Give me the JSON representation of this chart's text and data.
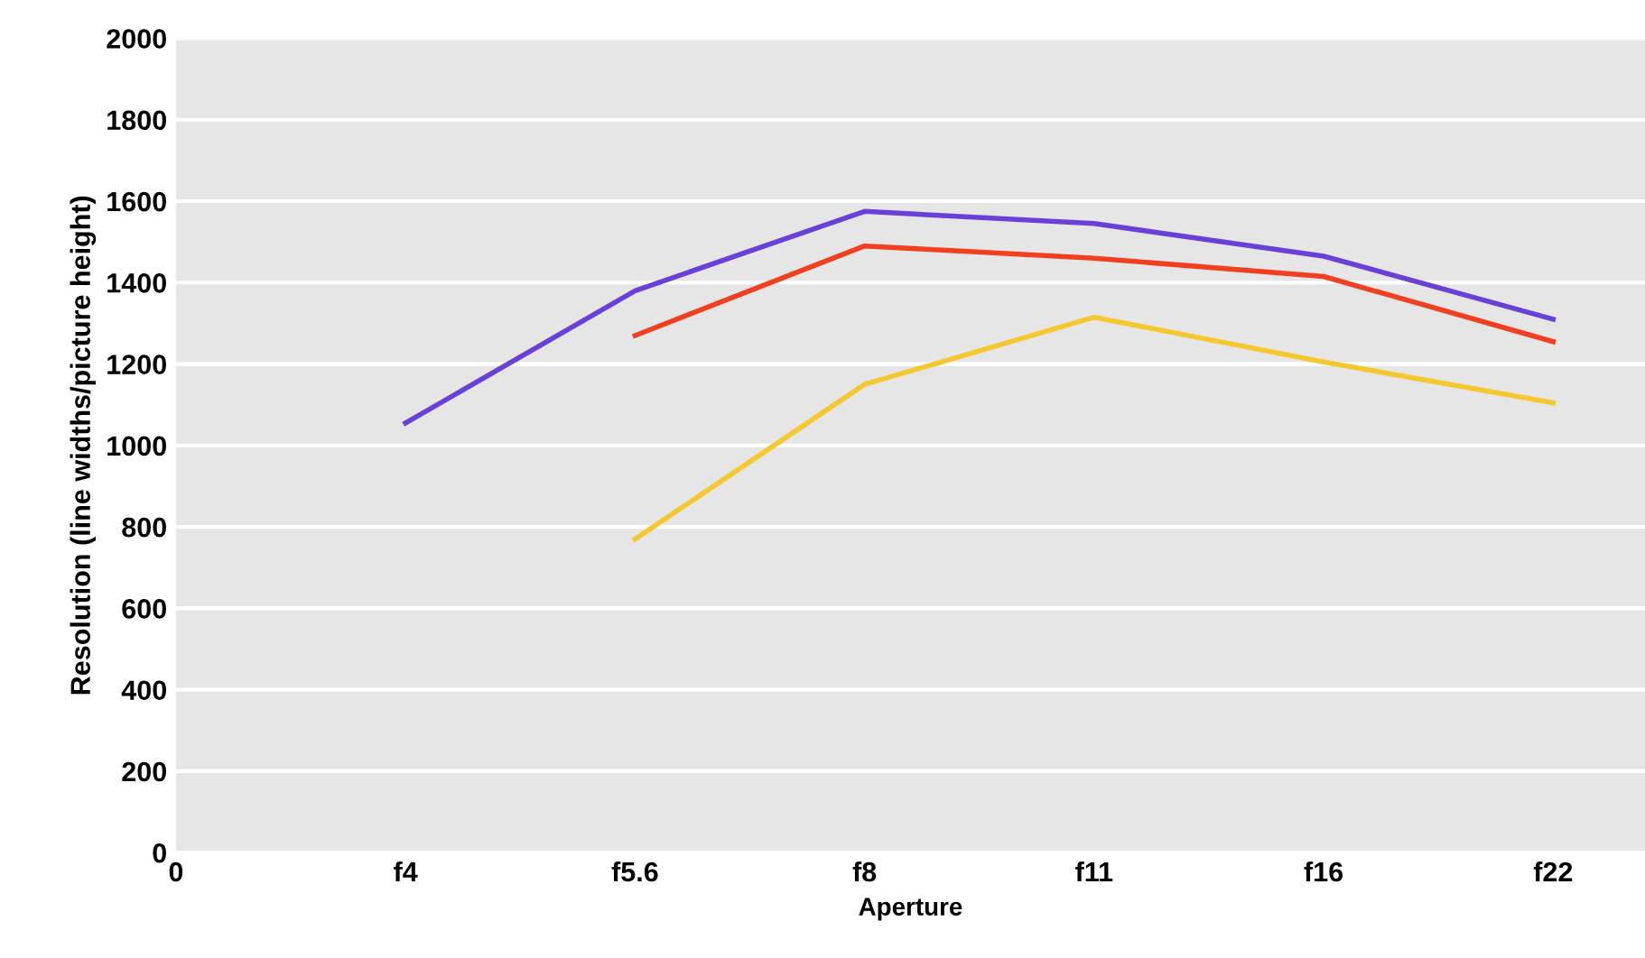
{
  "chart_data": {
    "type": "line",
    "xlabel": "Aperture",
    "ylabel": "Resolution (line widths/picture height)",
    "categories": [
      "0",
      "f4",
      "f5.6",
      "f8",
      "f11",
      "f16",
      "f22"
    ],
    "ylim": [
      0,
      2000
    ],
    "yticks": [
      0,
      200,
      400,
      600,
      800,
      1000,
      1200,
      1400,
      1600,
      1800,
      2000
    ],
    "grid": "y",
    "marker": "none",
    "line_style": "solid",
    "series": [
      {
        "color": "#6a40d8",
        "values": [
          null,
          1055,
          1380,
          1575,
          1545,
          1465,
          1310
        ]
      },
      {
        "color": "#f04020",
        "values": [
          null,
          null,
          1270,
          1490,
          1460,
          1415,
          1255
        ]
      },
      {
        "color": "#f5c830",
        "values": [
          null,
          null,
          770,
          1150,
          1315,
          1205,
          1105
        ]
      }
    ]
  }
}
